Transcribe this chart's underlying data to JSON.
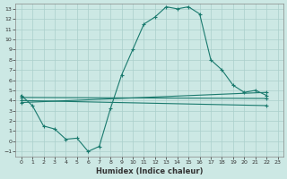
{
  "xlabel": "Humidex (Indice chaleur)",
  "xlim": [
    -0.5,
    23.5
  ],
  "ylim": [
    -1.5,
    13.5
  ],
  "xticks": [
    0,
    1,
    2,
    3,
    4,
    5,
    6,
    7,
    8,
    9,
    10,
    11,
    12,
    13,
    14,
    15,
    16,
    17,
    18,
    19,
    20,
    21,
    22,
    23
  ],
  "yticks": [
    -1,
    0,
    1,
    2,
    3,
    4,
    5,
    6,
    7,
    8,
    9,
    10,
    11,
    12,
    13
  ],
  "bg_color": "#cce8e4",
  "grid_color": "#aacfcb",
  "line_color": "#1a7a6e",
  "main_x": [
    0,
    1,
    2,
    3,
    4,
    5,
    6,
    7,
    8,
    9,
    10,
    11,
    12,
    13,
    14,
    15,
    16,
    17,
    18,
    19,
    20,
    21,
    22
  ],
  "main_y": [
    4.5,
    3.5,
    1.5,
    1.2,
    0.2,
    0.3,
    -1.0,
    -0.5,
    3.2,
    6.5,
    9.0,
    11.5,
    12.2,
    13.2,
    13.0,
    13.2,
    12.5,
    8.0,
    7.0,
    5.5,
    4.8,
    5.0,
    4.5
  ],
  "line1_x": [
    0,
    22
  ],
  "line1_y": [
    4.3,
    4.2
  ],
  "line2_x": [
    0,
    22
  ],
  "line2_y": [
    3.8,
    4.8
  ],
  "line3_x": [
    0,
    22
  ],
  "line3_y": [
    4.0,
    3.5
  ]
}
